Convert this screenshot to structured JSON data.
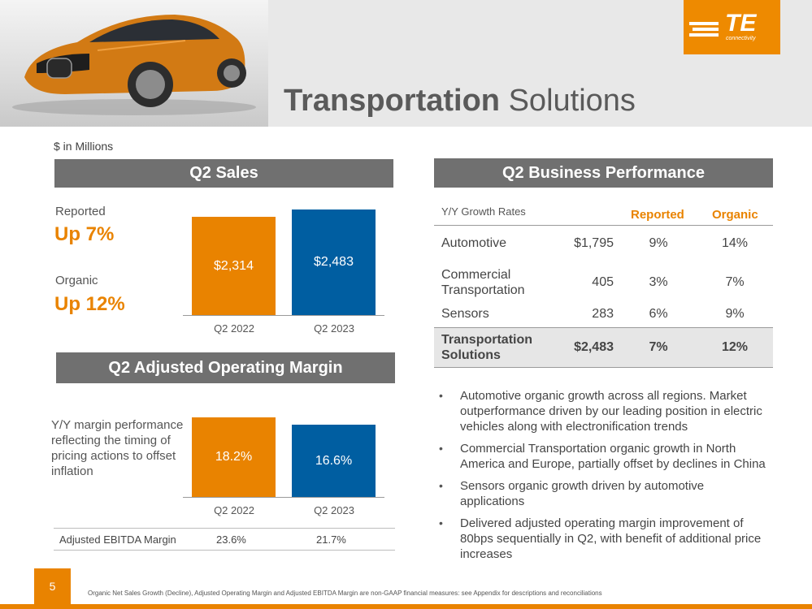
{
  "header": {
    "title_bold": "Transportation",
    "title_rest": " Solutions",
    "logo_text": "TE",
    "logo_sub": "connectivity"
  },
  "units": "$ in Millions",
  "sales": {
    "title": "Q2 Sales",
    "reported_label": "Reported",
    "reported_value": "Up 7%",
    "organic_label": "Organic",
    "organic_value": "Up 12%",
    "bar1_label": "$2,314",
    "bar2_label": "$2,483",
    "tick1": "Q2 2022",
    "tick2": "Q2 2023"
  },
  "margin": {
    "title": "Q2 Adjusted Operating Margin",
    "note": "Y/Y margin performance reflecting the timing of pricing actions to offset inflation",
    "bar1_label": "18.2%",
    "bar2_label": "16.6%",
    "tick1": "Q2 2022",
    "tick2": "Q2 2023",
    "ebitda_label": "Adjusted EBITDA Margin",
    "ebitda_1": "23.6%",
    "ebitda_2": "21.7%"
  },
  "performance": {
    "title": "Q2 Business Performance",
    "col_header": "Y/Y Growth Rates",
    "col_reported": "Reported",
    "col_organic": "Organic",
    "rows": [
      {
        "name": "Automotive",
        "value": "$1,795",
        "reported": "9%",
        "organic": "14%"
      },
      {
        "name": "Commercial Transportation",
        "value": "405",
        "reported": "3%",
        "organic": "7%"
      },
      {
        "name": "Sensors",
        "value": "283",
        "reported": "6%",
        "organic": "9%"
      },
      {
        "name": "Transportation Solutions",
        "value": "$2,483",
        "reported": "7%",
        "organic": "12%"
      }
    ]
  },
  "bullets": [
    "Automotive organic growth across all regions. Market outperformance driven by our leading position in electric vehicles along with electronification trends",
    "Commercial Transportation organic growth in North America and Europe, partially offset by declines in China",
    "Sensors organic growth driven by automotive applications",
    "Delivered adjusted operating margin improvement of 80bps sequentially in Q2, with benefit of additional price increases"
  ],
  "footer": {
    "page": "5",
    "note": "Organic Net Sales Growth (Decline), Adjusted Operating Margin and Adjusted EBITDA Margin are non-GAAP financial measures: see Appendix for descriptions and reconciliations"
  },
  "chart_data": [
    {
      "type": "bar",
      "title": "Q2 Sales",
      "categories": [
        "Q2 2022",
        "Q2 2023"
      ],
      "values": [
        2314,
        2483
      ]
    },
    {
      "type": "bar",
      "title": "Q2 Adjusted Operating Margin",
      "categories": [
        "Q2 2022",
        "Q2 2023"
      ],
      "values": [
        18.2,
        16.6
      ]
    }
  ],
  "colors": {
    "accent": "#e98300",
    "blue": "#005ea1",
    "gray_bar": "#707070"
  }
}
